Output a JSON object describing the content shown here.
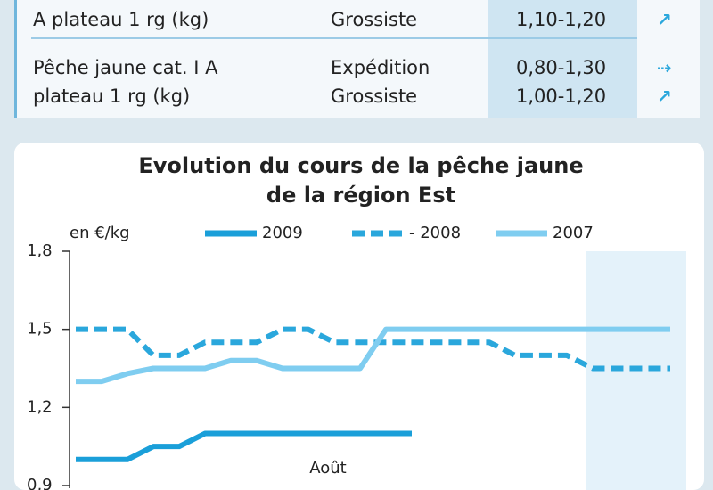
{
  "table": {
    "rows": [
      {
        "product": [
          "A plateau 1 rg (kg)"
        ],
        "markets": [
          "Grossiste"
        ],
        "prices": [
          "1,10-1,20"
        ]
      },
      {
        "product": [
          "Pêche jaune cat. I A",
          "plateau 1 rg (kg)"
        ],
        "markets": [
          "Expédition",
          "Grossiste"
        ],
        "prices": [
          "0,80-1,30",
          "1,00-1,20"
        ]
      }
    ]
  },
  "chart_data": {
    "type": "line",
    "title": [
      "Evolution du cours de la pêche jaune",
      "de la région Est"
    ],
    "y_label": "en €/kg",
    "annotation": "Août",
    "categories": [
      null,
      null,
      null,
      null,
      null,
      null,
      null,
      null,
      null,
      null,
      null,
      null,
      null,
      null,
      null,
      null,
      null,
      null,
      null,
      null,
      null,
      null,
      null,
      null
    ],
    "series": [
      {
        "name": "2009",
        "color": "#1a9fd9",
        "dashed": false,
        "values": [
          1.0,
          1.0,
          1.0,
          1.05,
          1.05,
          1.1,
          1.1,
          1.1,
          1.1,
          1.1,
          1.1,
          1.1,
          1.1,
          1.1,
          null,
          null,
          null,
          null,
          null,
          null,
          null,
          null,
          null,
          null
        ]
      },
      {
        "name": "- 2008",
        "color": "#2aa7dc",
        "dashed": true,
        "values": [
          1.5,
          1.5,
          1.5,
          1.4,
          1.4,
          1.45,
          1.45,
          1.45,
          1.5,
          1.5,
          1.45,
          1.45,
          1.45,
          1.45,
          1.45,
          1.45,
          1.45,
          1.4,
          1.4,
          1.4,
          1.35,
          1.35,
          1.35,
          1.35
        ]
      },
      {
        "name": "2007",
        "color": "#7fcdf0",
        "dashed": false,
        "values": [
          1.3,
          1.3,
          1.33,
          1.35,
          1.35,
          1.35,
          1.38,
          1.38,
          1.35,
          1.35,
          1.35,
          1.35,
          1.5,
          1.5,
          1.5,
          1.5,
          1.5,
          1.5,
          1.5,
          1.5,
          1.5,
          1.5,
          1.5,
          1.5
        ]
      }
    ],
    "ylim": [
      0.9,
      1.8
    ],
    "yticks": [
      {
        "value": 0.9,
        "label": "0,9"
      },
      {
        "value": 1.2,
        "label": "1,2"
      },
      {
        "value": 1.5,
        "label": "1,5"
      },
      {
        "value": 1.8,
        "label": "1,8"
      }
    ],
    "legend": "top"
  }
}
